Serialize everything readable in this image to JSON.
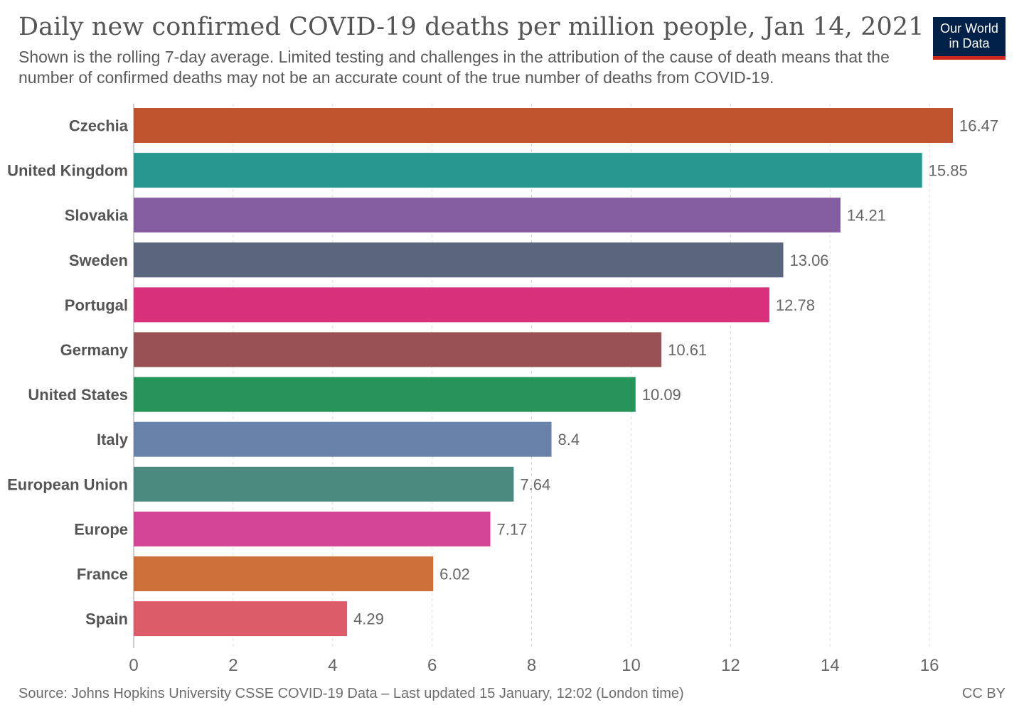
{
  "title": "Daily new confirmed COVID-19 deaths per million people, Jan 14, 2021",
  "subtitle": "Shown is the rolling 7-day average. Limited testing and challenges in the attribution of the cause of death means that the number of confirmed deaths may not be an accurate count of the true number of deaths from COVID-19.",
  "logo": {
    "line1": "Our World",
    "line2": "in Data",
    "background": "#002147",
    "accent": "#ce261e"
  },
  "source": "Source: Johns Hopkins University CSSE COVID-19 Data – Last updated 15 January, 12:02 (London time)",
  "license": "CC BY",
  "chart_data": {
    "type": "bar",
    "orientation": "horizontal",
    "categories": [
      "Czechia",
      "United Kingdom",
      "Slovakia",
      "Sweden",
      "Portugal",
      "Germany",
      "United States",
      "Italy",
      "European Union",
      "Europe",
      "France",
      "Spain"
    ],
    "values": [
      16.47,
      15.85,
      14.21,
      13.06,
      12.78,
      10.61,
      10.09,
      8.4,
      7.64,
      7.17,
      6.02,
      4.29
    ],
    "value_labels": [
      "16.47",
      "15.85",
      "14.21",
      "13.06",
      "12.78",
      "10.61",
      "10.09",
      "8.4",
      "7.64",
      "7.17",
      "6.02",
      "4.29"
    ],
    "colors": [
      "#be532d",
      "#27988f",
      "#855ea2",
      "#5a667e",
      "#d8307b",
      "#9a5155",
      "#27945a",
      "#6882aa",
      "#4a8b7f",
      "#d54597",
      "#cc6f38",
      "#dd5c6a"
    ],
    "xticks": [
      0,
      2,
      4,
      6,
      8,
      10,
      12,
      14,
      16
    ],
    "xlim": [
      0,
      16.47
    ],
    "grid": true,
    "legend": "none"
  }
}
